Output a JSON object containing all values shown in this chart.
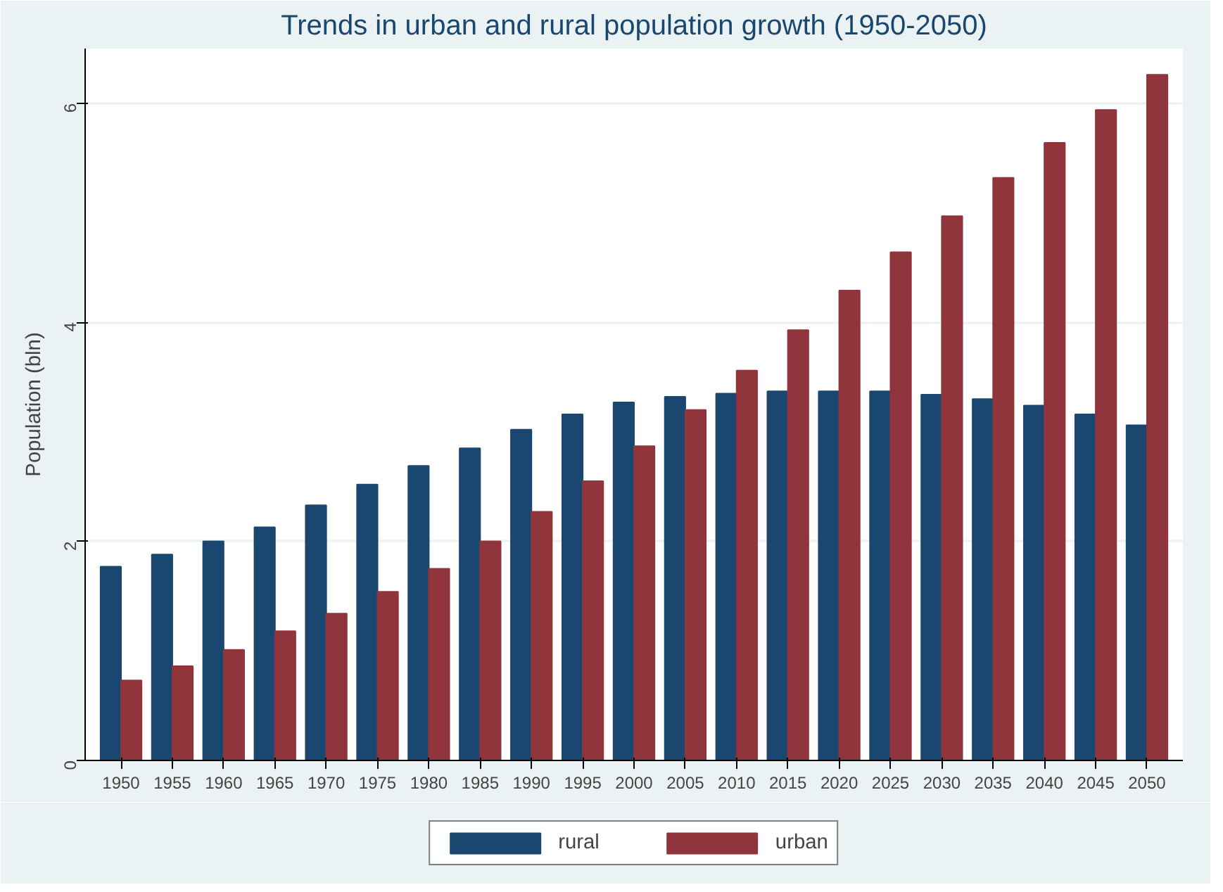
{
  "chart_data": {
    "type": "bar",
    "title": "Trends in urban and rural population growth (1950-2050)",
    "ylabel": "Population (bln)",
    "categories": [
      "1950",
      "1955",
      "1960",
      "1965",
      "1970",
      "1975",
      "1980",
      "1985",
      "1990",
      "1995",
      "2000",
      "2005",
      "2010",
      "2015",
      "2020",
      "2025",
      "2030",
      "2035",
      "2040",
      "2045",
      "2050"
    ],
    "series": [
      {
        "name": "rural",
        "color": "#1a476f",
        "values": [
          1.77,
          1.88,
          2.0,
          2.13,
          2.33,
          2.52,
          2.69,
          2.85,
          3.02,
          3.16,
          3.27,
          3.32,
          3.35,
          3.37,
          3.37,
          3.37,
          3.34,
          3.3,
          3.24,
          3.16,
          3.06
        ]
      },
      {
        "name": "urban",
        "color": "#90353b",
        "values": [
          0.73,
          0.86,
          1.01,
          1.18,
          1.34,
          1.54,
          1.75,
          2.0,
          2.27,
          2.55,
          2.87,
          3.2,
          3.56,
          3.93,
          4.29,
          4.64,
          4.97,
          5.32,
          5.64,
          5.94,
          6.26
        ]
      }
    ],
    "ylim": [
      0,
      6.5
    ],
    "yticks": [
      0,
      2,
      4,
      6
    ],
    "grid": "y",
    "legend": "bottom"
  }
}
